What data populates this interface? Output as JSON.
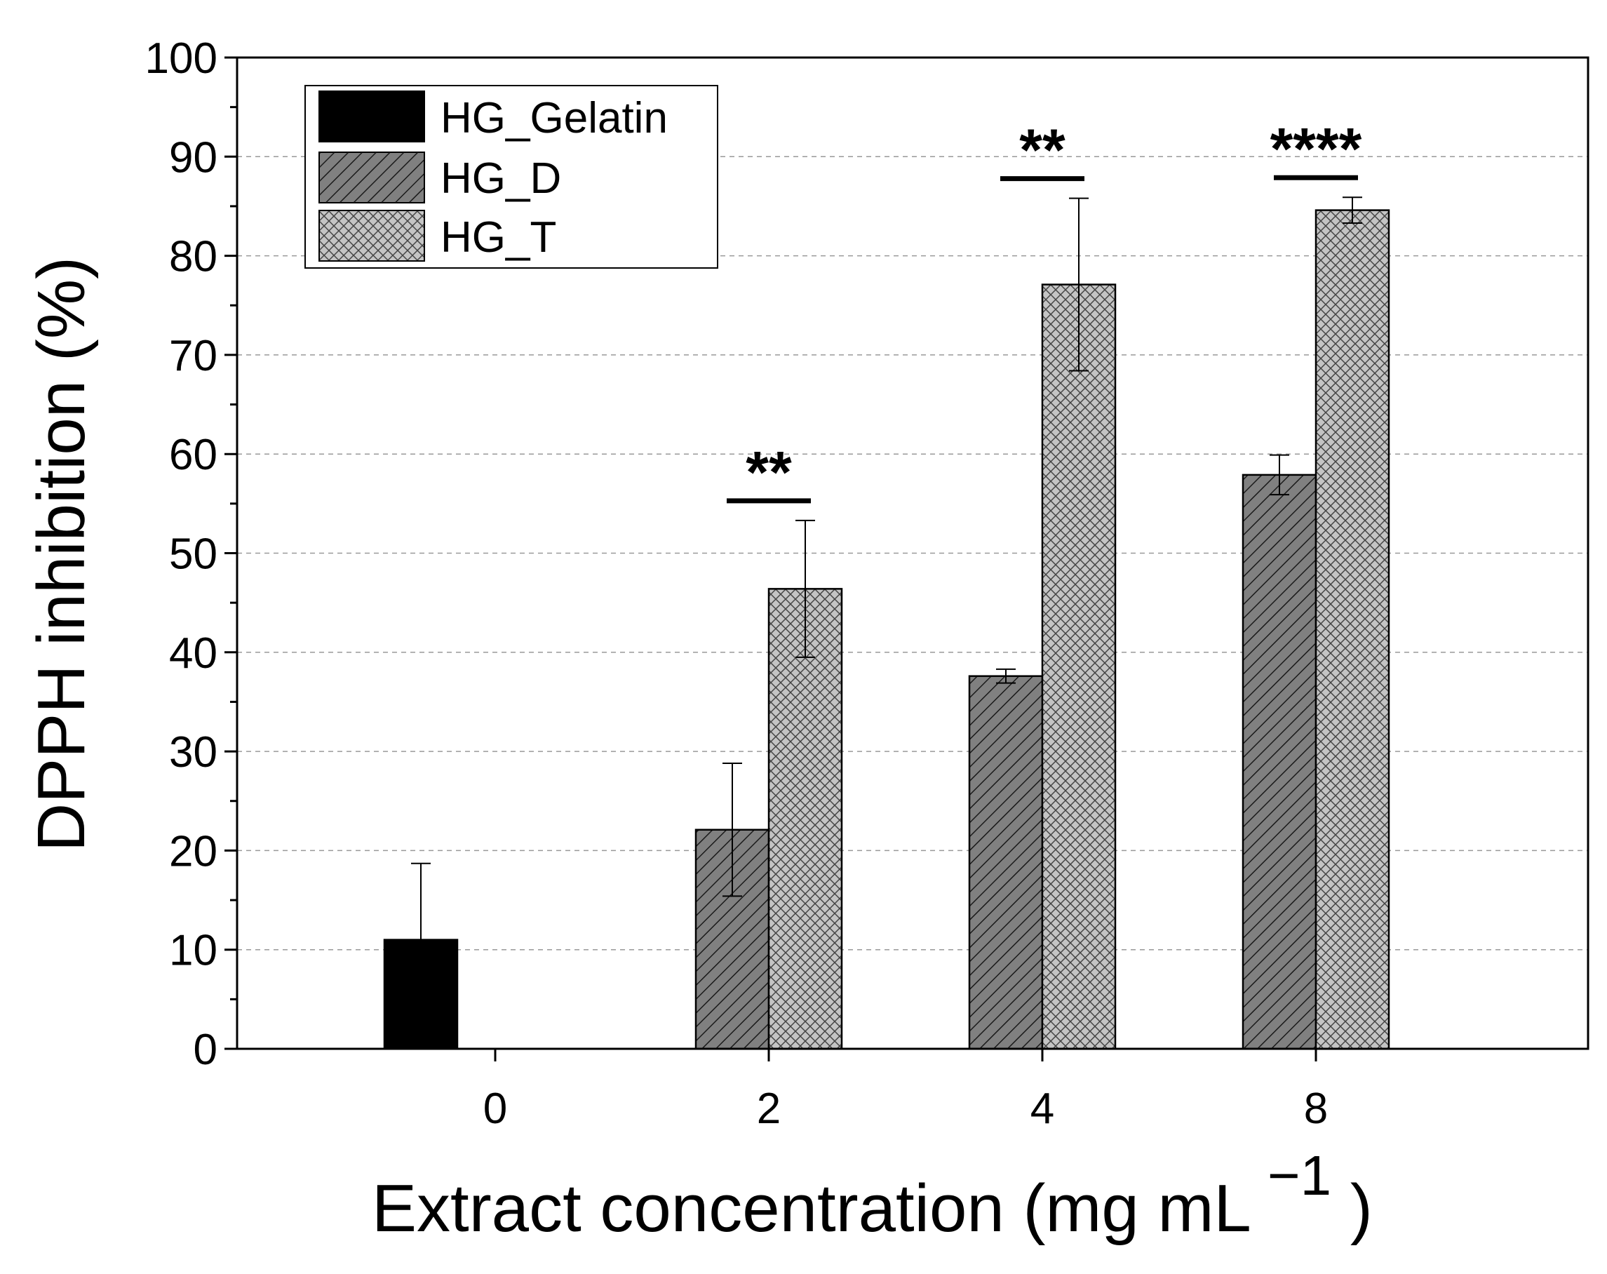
{
  "chart_data": {
    "type": "bar",
    "xlabel": "Extract concentration (mg mL",
    "xlabel_sup": "−1",
    "xlabel_close": ")",
    "ylabel": "DPPH inhibition (%)",
    "ylim": [
      0,
      100
    ],
    "yticks": [
      0,
      10,
      20,
      30,
      40,
      50,
      60,
      70,
      80,
      90,
      100
    ],
    "grid": true,
    "legend_position": "top-left",
    "categories": [
      "0",
      "2",
      "4",
      "8"
    ],
    "series": [
      {
        "name": "HG_Gelatin",
        "pattern": "solid",
        "color": "#000000",
        "values": [
          11.0,
          null,
          null,
          null
        ],
        "errors": [
          7.7,
          null,
          null,
          null
        ]
      },
      {
        "name": "HG_D",
        "pattern": "diagonal-hatch",
        "color": "#808080",
        "values": [
          null,
          22.1,
          37.6,
          57.9
        ],
        "errors": [
          null,
          6.7,
          0.7,
          2.0
        ]
      },
      {
        "name": "HG_T",
        "pattern": "crosshatch",
        "color": "#c0c0c0",
        "values": [
          null,
          46.4,
          77.1,
          84.6
        ],
        "errors": [
          null,
          6.9,
          8.7,
          1.3
        ]
      }
    ],
    "annotations": [
      {
        "category": "2",
        "text": "**"
      },
      {
        "category": "4",
        "text": "**"
      },
      {
        "category": "8",
        "text": "****"
      }
    ]
  }
}
